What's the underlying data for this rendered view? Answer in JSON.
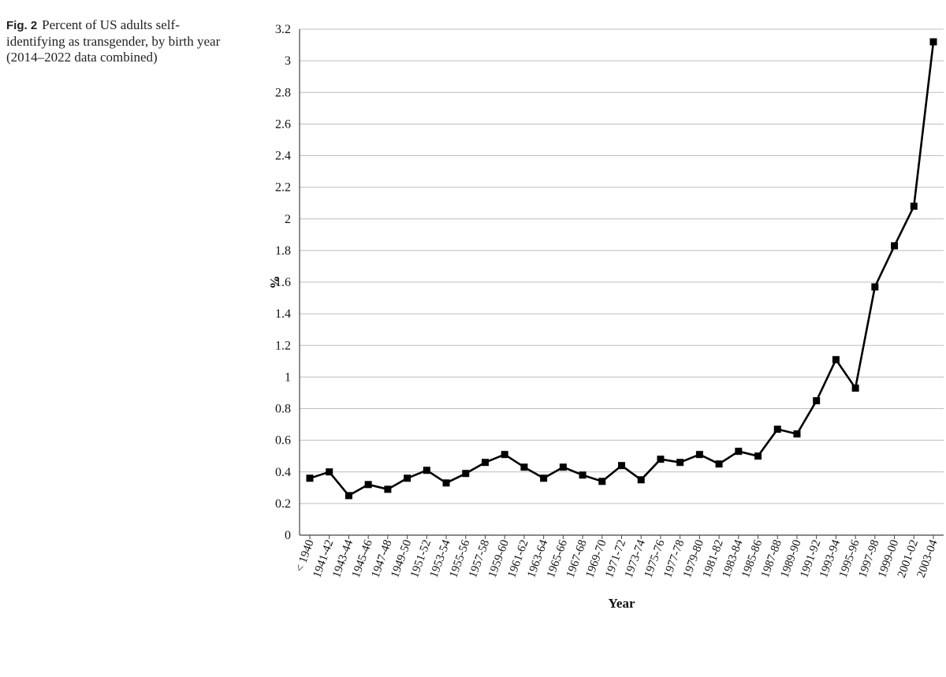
{
  "caption": {
    "label": "Fig. 2",
    "text": "Percent of US adults self-identifying as transgender, by birth year (2014–2022 data combined)"
  },
  "chart_data": {
    "type": "line",
    "title": "",
    "xlabel": "Year",
    "ylabel": "%",
    "ylim": [
      0,
      3.2
    ],
    "yticks": [
      "0",
      "0.2",
      "0.4",
      "0.6",
      "0.8",
      "1",
      "1.2",
      "1.4",
      "1.6",
      "1.8",
      "2",
      "2.2",
      "2.4",
      "2.6",
      "2.8",
      "3",
      "3.2"
    ],
    "grid": true,
    "legend": "none",
    "line_color": "#000000",
    "categories": [
      "< 1940",
      "1941-42",
      "1943-44",
      "1945-46",
      "1947-48",
      "1949-50",
      "1951-52",
      "1953-54",
      "1955-56",
      "1957-58",
      "1959-60",
      "1961-62",
      "1963-64",
      "1965-66",
      "1967-68",
      "1969-70",
      "1971-72",
      "1973-74",
      "1975-76",
      "1977-78",
      "1979-80",
      "1981-82",
      "1983-84",
      "1985-86",
      "1987-88",
      "1989-90",
      "1991-92",
      "1993-94",
      "1995-96",
      "1997-98",
      "1999-00",
      "2001-02",
      "2003-04"
    ],
    "values": [
      0.36,
      0.4,
      0.25,
      0.32,
      0.29,
      0.36,
      0.41,
      0.33,
      0.39,
      0.46,
      0.51,
      0.43,
      0.36,
      0.43,
      0.38,
      0.34,
      0.44,
      0.35,
      0.48,
      0.46,
      0.51,
      0.45,
      0.53,
      0.5,
      0.67,
      0.64,
      0.85,
      1.11,
      0.93,
      1.57,
      1.83,
      2.08,
      3.12
    ]
  }
}
